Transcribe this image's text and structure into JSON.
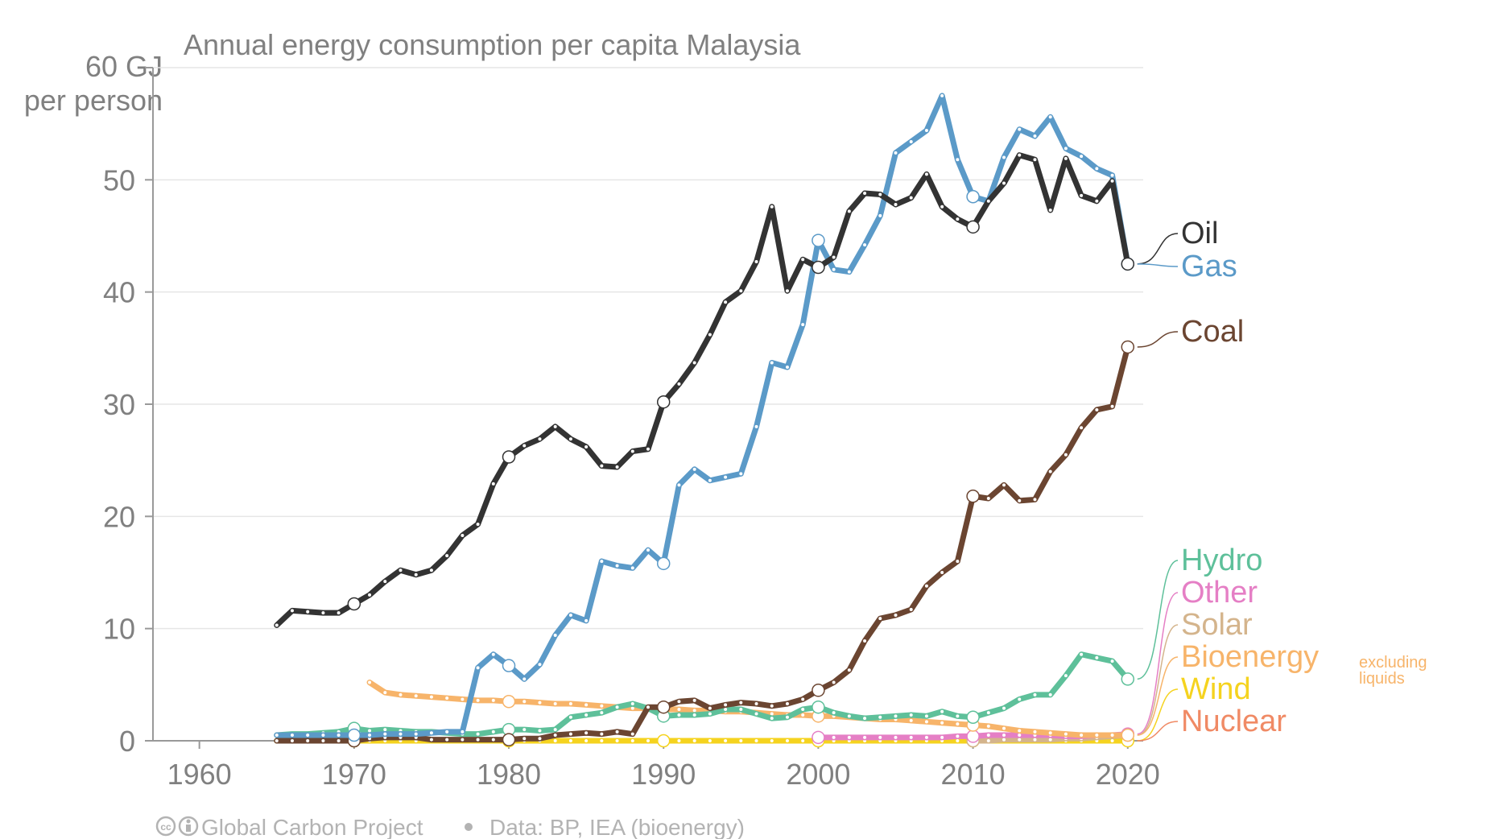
{
  "chart_data": {
    "type": "line",
    "title": "Annual energy consumption per capita Malaysia",
    "ylabel": "GJ per person",
    "ytick_top_label": "60 GJ",
    "ytick_top_sublabel": "per person",
    "ylim": [
      0,
      60
    ],
    "xlim": [
      1957,
      2021
    ],
    "yticks": [
      "0",
      "10",
      "20",
      "30",
      "40",
      "50"
    ],
    "yticks_values": [
      0,
      10,
      20,
      30,
      40,
      50
    ],
    "xticks": [
      "1960",
      "1970",
      "1980",
      "1990",
      "2000",
      "2010",
      "2020"
    ],
    "xticks_values": [
      1960,
      1970,
      1980,
      1990,
      2000,
      2010,
      2020
    ],
    "grid": true,
    "legend_placement": "right end of lines",
    "bioenergy_note": [
      "excluding",
      "liquids"
    ],
    "footer": {
      "cc_icon": "cc-icon",
      "by_icon": "attribution-icon",
      "org": "Global Carbon Project",
      "source": "Data: BP, IEA (bioenergy)"
    },
    "series": [
      {
        "name": "Oil",
        "color": "#333333",
        "x_start": 1965,
        "values": [
          10.3,
          11.6,
          11.5,
          11.4,
          11.4,
          12.2,
          13.0,
          14.2,
          15.2,
          14.8,
          15.2,
          16.5,
          18.3,
          19.3,
          22.9,
          25.3,
          26.3,
          26.9,
          28.0,
          26.9,
          26.2,
          24.5,
          24.4,
          25.8,
          26.0,
          30.2,
          31.8,
          33.7,
          36.2,
          39.1,
          40.1,
          42.7,
          47.6,
          40.1,
          42.9,
          42.2,
          43.1,
          47.2,
          48.8,
          48.7,
          47.8,
          48.4,
          50.5,
          47.6,
          46.5,
          45.8,
          48.1,
          49.7,
          52.2,
          51.8,
          47.3,
          51.9,
          48.6,
          48.1,
          49.9,
          42.5
        ]
      },
      {
        "name": "Gas",
        "color": "#5b9ac8",
        "x_start": 1965,
        "values": [
          0.5,
          0.5,
          0.5,
          0.5,
          0.5,
          0.5,
          0.5,
          0.6,
          0.6,
          0.6,
          0.7,
          0.8,
          0.8,
          6.5,
          7.7,
          6.7,
          5.5,
          6.8,
          9.4,
          11.2,
          10.7,
          16.0,
          15.6,
          15.4,
          17.0,
          15.8,
          22.8,
          24.2,
          23.2,
          23.5,
          23.8,
          28.0,
          33.7,
          33.3,
          37.1,
          44.6,
          42.0,
          41.8,
          44.2,
          46.8,
          52.4,
          53.4,
          54.4,
          57.5,
          51.8,
          48.5,
          48.1,
          52.0,
          54.5,
          53.9,
          55.6,
          52.8,
          52.1,
          51.0,
          50.4,
          42.5
        ]
      },
      {
        "name": "Coal",
        "color": "#6b4531",
        "x_start": 1965,
        "values": [
          0.0,
          0.0,
          0.0,
          0.0,
          0.0,
          0.0,
          0.2,
          0.3,
          0.3,
          0.3,
          0.1,
          0.1,
          0.1,
          0.1,
          0.1,
          0.1,
          0.2,
          0.2,
          0.5,
          0.6,
          0.7,
          0.6,
          0.8,
          0.6,
          3.0,
          3.0,
          3.5,
          3.6,
          2.9,
          3.2,
          3.4,
          3.3,
          3.1,
          3.3,
          3.7,
          4.5,
          5.2,
          6.3,
          8.9,
          10.9,
          11.2,
          11.7,
          13.8,
          15.0,
          16.0,
          21.8,
          21.6,
          22.8,
          21.4,
          21.5,
          24.0,
          25.5,
          27.9,
          29.5,
          29.8,
          35.1
        ]
      },
      {
        "name": "Hydro",
        "color": "#5ec09a",
        "x_start": 1965,
        "values": [
          0.5,
          0.6,
          0.6,
          0.7,
          0.8,
          1.1,
          0.9,
          1.0,
          0.9,
          0.8,
          0.8,
          0.7,
          0.6,
          0.6,
          0.8,
          1.0,
          1.0,
          0.9,
          1.0,
          2.1,
          2.3,
          2.5,
          3.0,
          3.3,
          2.9,
          2.2,
          2.3,
          2.3,
          2.4,
          2.8,
          2.8,
          2.4,
          2.0,
          2.1,
          2.8,
          3.0,
          2.5,
          2.2,
          2.0,
          2.1,
          2.2,
          2.3,
          2.2,
          2.6,
          2.2,
          2.1,
          2.5,
          2.9,
          3.7,
          4.1,
          4.1,
          5.8,
          7.7,
          7.4,
          7.1,
          5.5
        ]
      },
      {
        "name": "Other",
        "color": "#e57fc5",
        "x_start": 2000,
        "values": [
          0.3,
          0.3,
          0.3,
          0.3,
          0.3,
          0.3,
          0.3,
          0.3,
          0.3,
          0.4,
          0.4,
          0.5,
          0.5,
          0.5,
          0.5,
          0.5,
          0.4,
          0.4,
          0.5,
          0.5,
          0.6
        ]
      },
      {
        "name": "Solar",
        "color": "#d4b48c",
        "x_start": 2010,
        "values": [
          0.0,
          0.0,
          0.1,
          0.1,
          0.1,
          0.1,
          0.2,
          0.2,
          0.3,
          0.4,
          0.5
        ]
      },
      {
        "name": "Bioenergy",
        "color": "#f7b46a",
        "x_start": 1971,
        "values": [
          5.2,
          4.3,
          4.1,
          4.0,
          3.9,
          3.8,
          3.7,
          3.6,
          3.6,
          3.5,
          3.5,
          3.4,
          3.3,
          3.3,
          3.2,
          3.1,
          3.0,
          2.9,
          2.9,
          2.8,
          2.8,
          2.7,
          2.7,
          2.6,
          2.6,
          2.5,
          2.4,
          2.3,
          2.3,
          2.2,
          2.2,
          2.1,
          2.0,
          1.9,
          1.9,
          1.8,
          1.7,
          1.6,
          1.5,
          1.4,
          1.3,
          1.1,
          0.9,
          0.8,
          0.7,
          0.6,
          0.5,
          0.5,
          0.5,
          0.5
        ]
      },
      {
        "name": "Wind",
        "color": "#f5d31f",
        "x_start": 1965,
        "values": [
          0.0,
          0.0,
          0.0,
          0.0,
          0.0,
          0.0,
          0.0,
          0.0,
          0.0,
          0.0,
          0.0,
          0.0,
          0.0,
          0.0,
          0.0,
          0.0,
          0.0,
          0.0,
          0.0,
          0.0,
          0.0,
          0.0,
          0.0,
          0.0,
          0.0,
          0.0,
          0.0,
          0.0,
          0.0,
          0.0,
          0.0,
          0.0,
          0.0,
          0.0,
          0.0,
          0.0,
          0.0,
          0.0,
          0.0,
          0.0,
          0.0,
          0.0,
          0.0,
          0.0,
          0.0,
          0.0,
          0.0,
          0.0,
          0.0,
          0.0,
          0.0,
          0.0,
          0.0,
          0.0,
          0.0,
          0.0
        ]
      },
      {
        "name": "Nuclear",
        "color": "#f08a65",
        "x_start": 1965,
        "values": []
      }
    ]
  }
}
